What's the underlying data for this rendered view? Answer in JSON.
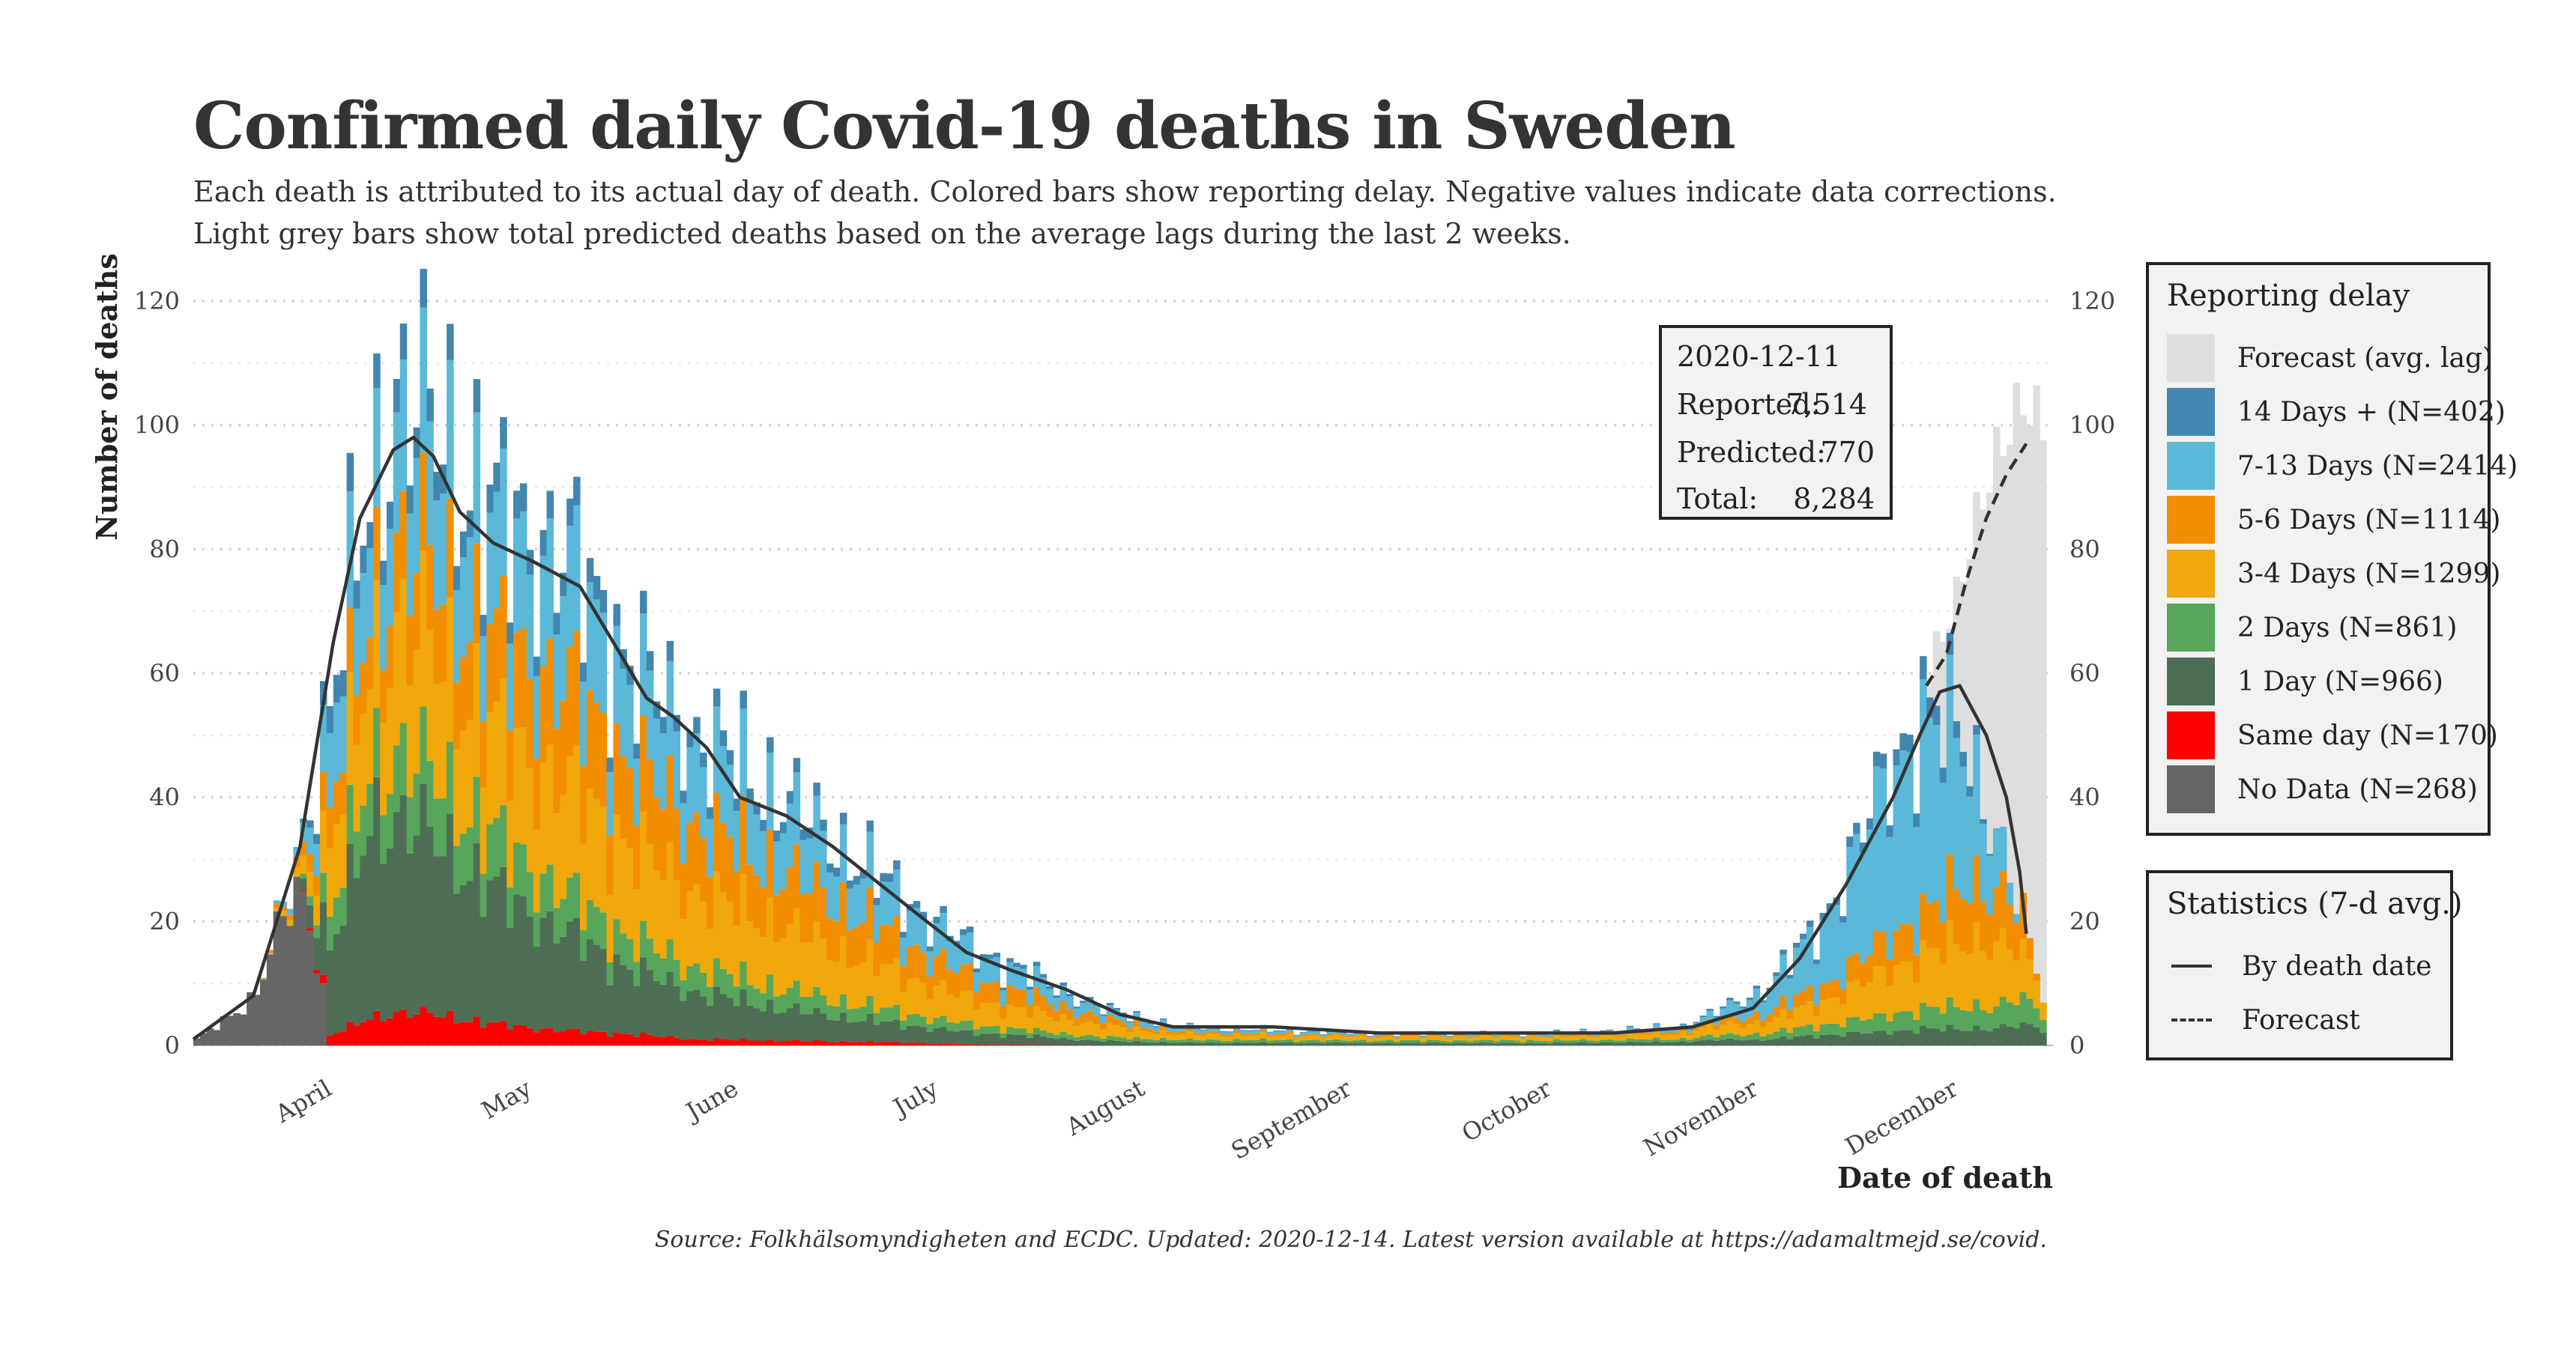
{
  "title": "Confirmed daily Covid-19 deaths in Sweden",
  "subtitle": [
    "Each death is attributed to its actual day of death. Colored bars show reporting delay. Negative values indicate data corrections.",
    "Light grey bars show total predicted deaths based on the average lags during the last 2 weeks."
  ],
  "source": "Source: Folkhälsomyndigheten and ECDC. Updated: 2020-12-14. Latest version available at https://adamaltmejd.se/covid.",
  "info_box": {
    "date": "2020-12-11",
    "reported_label": "Reported:",
    "reported_value": "7,514",
    "predicted_label": "Predicted:",
    "predicted_value": "770",
    "total_label": "Total:",
    "total_value": "8,284"
  },
  "legend": {
    "title": "Reporting delay",
    "items": [
      {
        "label": "Forecast (avg. lag)",
        "color": "#dedede"
      },
      {
        "label": "14 Days + (N=402)",
        "color": "#4286b0"
      },
      {
        "label": "7-13 Days (N=2414)",
        "color": "#5bb8d8"
      },
      {
        "label": "5-6 Days (N=1114)",
        "color": "#f28e00"
      },
      {
        "label": "3-4 Days (N=1299)",
        "color": "#f1a80a"
      },
      {
        "label": "2 Days (N=861)",
        "color": "#58a65c"
      },
      {
        "label": "1 Day (N=966)",
        "color": "#4d6e55"
      },
      {
        "label": "Same day (N=170)",
        "color": "#ff0000"
      },
      {
        "label": "No Data (N=268)",
        "color": "#666666"
      }
    ]
  },
  "stats_legend": {
    "title": "Statistics (7-d avg.)",
    "items": [
      {
        "label": "By death date",
        "style": "solid"
      },
      {
        "label": "Forecast",
        "style": "dashed"
      }
    ]
  },
  "chart_data": {
    "type": "bar",
    "stacked": true,
    "xlabel": "Date of death",
    "ylabel": "Number of deaths",
    "ylim": [
      0,
      120
    ],
    "y_ticks": [
      "0",
      "20",
      "40",
      "60",
      "80",
      "100",
      "120"
    ],
    "x_range": [
      "2020-03-11",
      "2020-12-14"
    ],
    "month_labels": [
      {
        "label": "April",
        "date": "2020-04-01"
      },
      {
        "label": "May",
        "date": "2020-05-01"
      },
      {
        "label": "June",
        "date": "2020-06-01"
      },
      {
        "label": "July",
        "date": "2020-07-01"
      },
      {
        "label": "August",
        "date": "2020-08-01"
      },
      {
        "label": "September",
        "date": "2020-09-01"
      },
      {
        "label": "October",
        "date": "2020-10-01"
      },
      {
        "label": "November",
        "date": "2020-11-01"
      },
      {
        "label": "December",
        "date": "2020-12-01"
      }
    ],
    "series_order": [
      "No Data",
      "Same day",
      "1 Day",
      "2 Days",
      "3-4 Days",
      "5-6 Days",
      "7-13 Days",
      "14 Days +",
      "Forecast (avg. lag)"
    ],
    "series_colors": [
      "#666666",
      "#ff0000",
      "#4d6e55",
      "#58a65c",
      "#f1a80a",
      "#f28e00",
      "#5bb8d8",
      "#4286b0",
      "#dedede"
    ],
    "anchors": [
      {
        "date": "2020-03-11",
        "total": 1,
        "share": [
          1,
          0,
          0,
          0,
          0,
          0,
          0,
          0
        ]
      },
      {
        "date": "2020-03-20",
        "total": 8,
        "share": [
          1,
          0,
          0,
          0,
          0,
          0,
          0,
          0
        ]
      },
      {
        "date": "2020-03-26",
        "total": 30,
        "share": [
          0.85,
          0,
          0,
          0,
          0.05,
          0.05,
          0.05,
          0
        ]
      },
      {
        "date": "2020-03-31",
        "total": 55,
        "share": [
          0,
          0.03,
          0.25,
          0.1,
          0.2,
          0.12,
          0.22,
          0.08
        ]
      },
      {
        "date": "2020-04-06",
        "total": 90,
        "share": [
          0,
          0.05,
          0.35,
          0.1,
          0.18,
          0.1,
          0.17,
          0.05
        ]
      },
      {
        "date": "2020-04-10",
        "total": 105,
        "share": [
          0,
          0.05,
          0.3,
          0.1,
          0.2,
          0.12,
          0.18,
          0.05
        ]
      },
      {
        "date": "2020-04-16",
        "total": 100,
        "share": [
          0,
          0.05,
          0.28,
          0.1,
          0.2,
          0.13,
          0.19,
          0.05
        ]
      },
      {
        "date": "2020-04-25",
        "total": 85,
        "share": [
          0,
          0.04,
          0.25,
          0.1,
          0.2,
          0.16,
          0.2,
          0.05
        ]
      },
      {
        "date": "2020-05-05",
        "total": 80,
        "share": [
          0,
          0.03,
          0.2,
          0.08,
          0.22,
          0.2,
          0.22,
          0.05
        ]
      },
      {
        "date": "2020-05-15",
        "total": 62,
        "share": [
          0,
          0.03,
          0.17,
          0.08,
          0.24,
          0.21,
          0.22,
          0.05
        ]
      },
      {
        "date": "2020-05-25",
        "total": 50,
        "share": [
          0,
          0.02,
          0.15,
          0.08,
          0.24,
          0.22,
          0.24,
          0.05
        ]
      },
      {
        "date": "2020-06-05",
        "total": 42,
        "share": [
          0,
          0.02,
          0.13,
          0.08,
          0.25,
          0.22,
          0.25,
          0.05
        ]
      },
      {
        "date": "2020-06-15",
        "total": 33,
        "share": [
          0,
          0.02,
          0.12,
          0.08,
          0.25,
          0.23,
          0.25,
          0.05
        ]
      },
      {
        "date": "2020-06-25",
        "total": 24,
        "share": [
          0,
          0.02,
          0.12,
          0.08,
          0.25,
          0.23,
          0.25,
          0.05
        ]
      },
      {
        "date": "2020-07-05",
        "total": 16,
        "share": [
          0,
          0.01,
          0.12,
          0.08,
          0.25,
          0.23,
          0.26,
          0.05
        ]
      },
      {
        "date": "2020-07-15",
        "total": 11,
        "share": [
          0,
          0.01,
          0.12,
          0.08,
          0.26,
          0.22,
          0.26,
          0.05
        ]
      },
      {
        "date": "2020-07-25",
        "total": 6,
        "share": [
          0,
          0,
          0.12,
          0.1,
          0.3,
          0.2,
          0.23,
          0.05
        ]
      },
      {
        "date": "2020-08-05",
        "total": 3,
        "share": [
          0,
          0,
          0.15,
          0.15,
          0.3,
          0.15,
          0.2,
          0.05
        ]
      },
      {
        "date": "2020-09-01",
        "total": 2,
        "share": [
          0,
          0,
          0.2,
          0.2,
          0.3,
          0.1,
          0.15,
          0.05
        ]
      },
      {
        "date": "2020-10-01",
        "total": 2,
        "share": [
          0,
          0,
          0.2,
          0.2,
          0.3,
          0.1,
          0.15,
          0.05
        ]
      },
      {
        "date": "2020-10-20",
        "total": 3,
        "share": [
          0,
          0,
          0.2,
          0.15,
          0.3,
          0.15,
          0.15,
          0.05
        ]
      },
      {
        "date": "2020-11-01",
        "total": 9,
        "share": [
          0,
          0,
          0.1,
          0.1,
          0.2,
          0.15,
          0.4,
          0.05
        ]
      },
      {
        "date": "2020-11-10",
        "total": 20,
        "share": [
          0,
          0,
          0.08,
          0.08,
          0.18,
          0.12,
          0.49,
          0.05
        ]
      },
      {
        "date": "2020-11-18",
        "total": 40,
        "share": [
          0,
          0,
          0.05,
          0.06,
          0.16,
          0.12,
          0.56,
          0.05
        ]
      },
      {
        "date": "2020-11-25",
        "total": 55,
        "share": [
          0,
          0,
          0.05,
          0.06,
          0.16,
          0.12,
          0.55,
          0.06
        ]
      },
      {
        "date": "2020-12-01",
        "total": 50,
        "share": [
          0,
          0,
          0.05,
          0.07,
          0.2,
          0.18,
          0.45,
          0.05
        ]
      },
      {
        "date": "2020-12-06",
        "total": 35,
        "share": [
          0,
          0,
          0.08,
          0.1,
          0.3,
          0.25,
          0.27,
          0
        ]
      },
      {
        "date": "2020-12-10",
        "total": 20,
        "share": [
          0,
          0,
          0.15,
          0.2,
          0.35,
          0.3,
          0,
          0
        ]
      },
      {
        "date": "2020-12-13",
        "total": 8,
        "share": [
          0,
          0,
          0.3,
          0.3,
          0.4,
          0,
          0,
          0
        ]
      }
    ],
    "forecast_totals": [
      {
        "date": "2020-11-25",
        "total": 58
      },
      {
        "date": "2020-11-30",
        "total": 72
      },
      {
        "date": "2020-12-03",
        "total": 85
      },
      {
        "date": "2020-12-06",
        "total": 95
      },
      {
        "date": "2020-12-10",
        "total": 104
      },
      {
        "date": "2020-12-13",
        "total": 100
      }
    ],
    "avg_line": [
      {
        "date": "2020-03-11",
        "value": 1
      },
      {
        "date": "2020-03-20",
        "value": 8
      },
      {
        "date": "2020-03-27",
        "value": 32
      },
      {
        "date": "2020-04-01",
        "value": 65
      },
      {
        "date": "2020-04-05",
        "value": 85
      },
      {
        "date": "2020-04-10",
        "value": 96
      },
      {
        "date": "2020-04-13",
        "value": 98
      },
      {
        "date": "2020-04-16",
        "value": 95
      },
      {
        "date": "2020-04-20",
        "value": 86
      },
      {
        "date": "2020-04-25",
        "value": 81
      },
      {
        "date": "2020-05-01",
        "value": 78
      },
      {
        "date": "2020-05-08",
        "value": 74
      },
      {
        "date": "2020-05-13",
        "value": 65
      },
      {
        "date": "2020-05-18",
        "value": 56
      },
      {
        "date": "2020-05-22",
        "value": 53
      },
      {
        "date": "2020-05-27",
        "value": 48
      },
      {
        "date": "2020-06-01",
        "value": 40
      },
      {
        "date": "2020-06-08",
        "value": 37
      },
      {
        "date": "2020-06-15",
        "value": 32
      },
      {
        "date": "2020-06-22",
        "value": 26
      },
      {
        "date": "2020-06-29",
        "value": 20
      },
      {
        "date": "2020-07-05",
        "value": 15
      },
      {
        "date": "2020-07-12",
        "value": 12
      },
      {
        "date": "2020-07-20",
        "value": 9
      },
      {
        "date": "2020-07-28",
        "value": 5
      },
      {
        "date": "2020-08-05",
        "value": 3
      },
      {
        "date": "2020-08-20",
        "value": 3
      },
      {
        "date": "2020-09-05",
        "value": 2
      },
      {
        "date": "2020-09-25",
        "value": 2
      },
      {
        "date": "2020-10-10",
        "value": 2
      },
      {
        "date": "2020-10-22",
        "value": 3
      },
      {
        "date": "2020-10-31",
        "value": 6
      },
      {
        "date": "2020-11-07",
        "value": 14
      },
      {
        "date": "2020-11-14",
        "value": 26
      },
      {
        "date": "2020-11-21",
        "value": 40
      },
      {
        "date": "2020-11-25",
        "value": 50
      },
      {
        "date": "2020-11-28",
        "value": 57
      },
      {
        "date": "2020-12-01",
        "value": 58
      },
      {
        "date": "2020-12-05",
        "value": 50
      },
      {
        "date": "2020-12-08",
        "value": 40
      },
      {
        "date": "2020-12-10",
        "value": 28
      },
      {
        "date": "2020-12-11",
        "value": 18
      }
    ],
    "forecast_line": [
      {
        "date": "2020-11-26",
        "value": 58
      },
      {
        "date": "2020-11-29",
        "value": 63
      },
      {
        "date": "2020-12-02",
        "value": 75
      },
      {
        "date": "2020-12-05",
        "value": 85
      },
      {
        "date": "2020-12-08",
        "value": 92
      },
      {
        "date": "2020-12-11",
        "value": 97
      }
    ]
  }
}
